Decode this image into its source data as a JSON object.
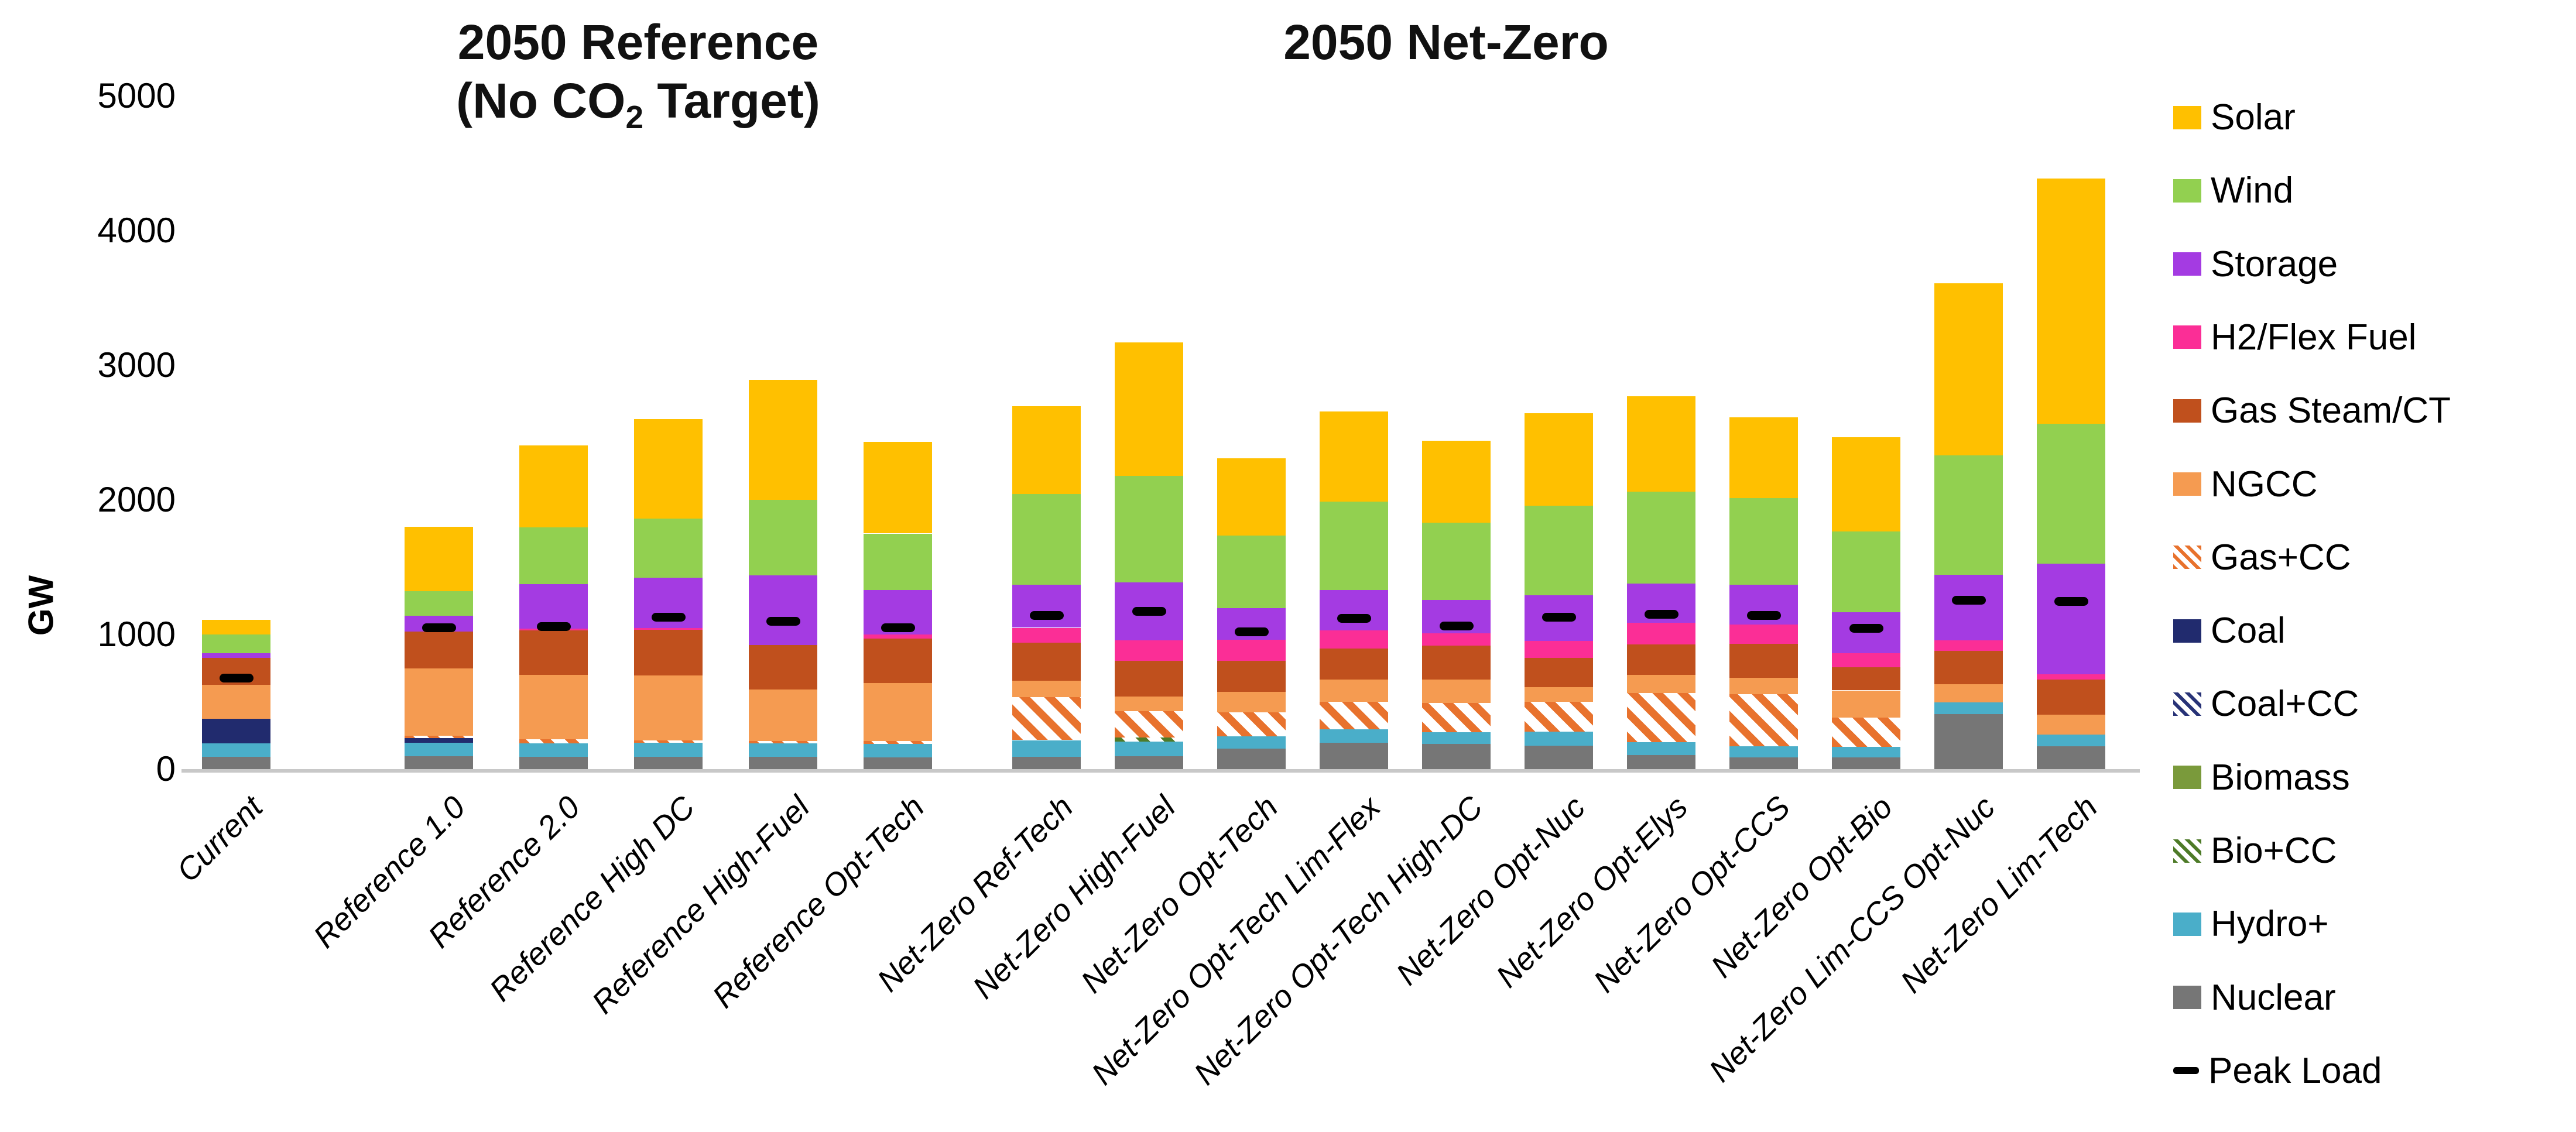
{
  "titles": {
    "reference_line1": "2050 Reference",
    "reference_line2_pre": "(No CO",
    "reference_line2_sub": "2",
    "reference_line2_post": " Target)",
    "netzero": "2050 Net-Zero"
  },
  "y_axis": {
    "label": "GW",
    "ticks": [
      0,
      1000,
      2000,
      3000,
      4000,
      5000
    ],
    "max": 5000
  },
  "legend": [
    {
      "id": "solar",
      "label": "Solar",
      "color": "#ffc000",
      "pattern": false
    },
    {
      "id": "wind",
      "label": "Wind",
      "color": "#92d050",
      "pattern": false
    },
    {
      "id": "storage",
      "label": "Storage",
      "color": "#a43be2",
      "pattern": false
    },
    {
      "id": "h2",
      "label": "H2/Flex Fuel",
      "color": "#fb2e96",
      "pattern": false
    },
    {
      "id": "gas_steam",
      "label": "Gas Steam/CT",
      "color": "#c0501d",
      "pattern": false
    },
    {
      "id": "ngcc",
      "label": "NGCC",
      "color": "#f59b51",
      "pattern": false
    },
    {
      "id": "gas_cc",
      "label": "Gas+CC",
      "color": "#e8722d",
      "pattern": true
    },
    {
      "id": "coal",
      "label": "Coal",
      "color": "#212b6e",
      "pattern": false
    },
    {
      "id": "coal_cc",
      "label": "Coal+CC",
      "color": "#283377",
      "pattern": true
    },
    {
      "id": "biomass",
      "label": "Biomass",
      "color": "#7a9a3b",
      "pattern": false
    },
    {
      "id": "bio_cc",
      "label": "Bio+CC",
      "color": "#4e7b28",
      "pattern": true
    },
    {
      "id": "hydro",
      "label": "Hydro+",
      "color": "#4aaec9",
      "pattern": false
    },
    {
      "id": "nuclear",
      "label": "Nuclear",
      "color": "#767676",
      "pattern": false
    },
    {
      "id": "peak",
      "label": "Peak Load",
      "color": "#000000",
      "pattern": false,
      "dash": true
    }
  ],
  "chart_data": {
    "type": "bar",
    "stacked": true,
    "unit": "GW",
    "ylabel": "GW",
    "ylim": [
      0,
      5000
    ],
    "grid": false,
    "legend_position": "right",
    "group_titles": [
      "2050 Reference (No CO2 Target)",
      "2050 Net-Zero"
    ],
    "categories": [
      "Current",
      "Reference 1.0",
      "Reference 2.0",
      "Reference High DC",
      "Reference High-Fuel",
      "Reference Opt-Tech",
      "Net-Zero Ref-Tech",
      "Net-Zero High-Fuel",
      "Net-Zero Opt-Tech",
      "Net-Zero Opt-Tech Lim-Flex",
      "Net-Zero Opt-Tech High-DC",
      "Net-Zero Opt-Nuc",
      "Net-Zero Opt-Elys",
      "Net-Zero Opt-CCS",
      "Net-Zero Opt-Bio",
      "Net-Zero Lim-CCS Opt-Nuc",
      "Net-Zero Lim-Tech"
    ],
    "groups": [
      {
        "name": "current",
        "indices": [
          0
        ]
      },
      {
        "name": "reference",
        "indices": [
          1,
          2,
          3,
          4,
          5
        ]
      },
      {
        "name": "netzero",
        "indices": [
          6,
          7,
          8,
          9,
          10,
          11,
          12,
          13,
          14,
          15,
          16
        ]
      }
    ],
    "stack_order_bottom_to_top": [
      "nuclear",
      "hydro",
      "bio_cc",
      "biomass",
      "coal_cc",
      "coal",
      "gas_cc",
      "ngcc",
      "gas_steam",
      "h2",
      "storage",
      "wind",
      "solar"
    ],
    "series": [
      {
        "name": "nuclear",
        "values": [
          90,
          95,
          90,
          90,
          90,
          85,
          90,
          95,
          150,
          195,
          185,
          175,
          105,
          85,
          85,
          410,
          170
        ]
      },
      {
        "name": "hydro",
        "values": [
          100,
          100,
          100,
          105,
          100,
          100,
          125,
          110,
          95,
          100,
          90,
          105,
          95,
          85,
          80,
          85,
          85
        ]
      },
      {
        "name": "bio_cc",
        "values": [
          0,
          0,
          0,
          0,
          0,
          0,
          0,
          30,
          0,
          0,
          0,
          0,
          0,
          0,
          0,
          0,
          0
        ]
      },
      {
        "name": "biomass",
        "values": [
          0,
          0,
          0,
          0,
          0,
          0,
          0,
          0,
          0,
          0,
          0,
          0,
          0,
          0,
          0,
          0,
          0
        ]
      },
      {
        "name": "coal_cc",
        "values": [
          0,
          0,
          0,
          0,
          0,
          0,
          0,
          0,
          0,
          0,
          0,
          0,
          0,
          0,
          0,
          0,
          0
        ]
      },
      {
        "name": "coal",
        "values": [
          185,
          35,
          0,
          0,
          0,
          0,
          0,
          0,
          0,
          0,
          0,
          0,
          0,
          0,
          0,
          0,
          0
        ]
      },
      {
        "name": "gas_cc",
        "values": [
          0,
          20,
          30,
          20,
          20,
          25,
          320,
          195,
          175,
          205,
          215,
          220,
          365,
          385,
          220,
          0,
          0
        ]
      },
      {
        "name": "ngcc",
        "values": [
          250,
          500,
          480,
          480,
          380,
          430,
          120,
          110,
          155,
          165,
          175,
          110,
          135,
          125,
          200,
          135,
          150
        ]
      },
      {
        "name": "gas_steam",
        "values": [
          200,
          270,
          330,
          340,
          330,
          330,
          285,
          265,
          230,
          230,
          250,
          215,
          225,
          250,
          170,
          250,
          260
        ]
      },
      {
        "name": "h2",
        "values": [
          0,
          0,
          15,
          15,
          0,
          30,
          110,
          150,
          155,
          135,
          95,
          125,
          160,
          145,
          105,
          75,
          40
        ]
      },
      {
        "name": "storage",
        "values": [
          35,
          120,
          330,
          370,
          520,
          330,
          320,
          430,
          235,
          300,
          245,
          340,
          295,
          295,
          305,
          490,
          820
        ]
      },
      {
        "name": "wind",
        "values": [
          140,
          180,
          420,
          440,
          560,
          420,
          675,
          795,
          540,
          655,
          575,
          665,
          680,
          645,
          600,
          885,
          1040
        ]
      },
      {
        "name": "solar",
        "values": [
          110,
          480,
          610,
          740,
          890,
          680,
          650,
          990,
          575,
          670,
          610,
          690,
          710,
          600,
          700,
          1280,
          1820
        ]
      }
    ],
    "peak_load": {
      "name": "Peak Load",
      "values": [
        675,
        1050,
        1060,
        1130,
        1100,
        1050,
        1140,
        1170,
        1020,
        1120,
        1065,
        1130,
        1150,
        1140,
        1045,
        1255,
        1245
      ]
    },
    "totals": [
      1110,
      1800,
      2405,
      2600,
      2890,
      2430,
      2695,
      3170,
      2310,
      2655,
      2440,
      2645,
      2770,
      2615,
      2465,
      3610,
      4385
    ]
  }
}
